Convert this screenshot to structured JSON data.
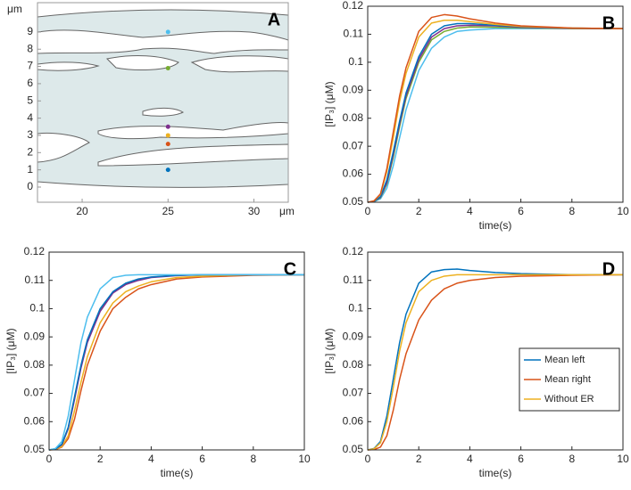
{
  "chart_data": [
    {
      "type": "scatter",
      "panel_label": "A",
      "xlabel": "μm",
      "ylabel": "μm",
      "xlim": [
        17.4,
        32.0
      ],
      "ylim": [
        -0.88,
        10.7
      ],
      "xticks": [
        20,
        25,
        30
      ],
      "yticks": [
        0,
        1,
        2,
        3,
        4,
        5,
        6,
        7,
        8,
        9
      ],
      "x": [
        25,
        25,
        25,
        25,
        25,
        25
      ],
      "values": [
        9,
        6.9,
        3.5,
        3.0,
        2.5,
        1.0
      ],
      "colors": [
        "#4dbeee",
        "#77ac30",
        "#7e2f8e",
        "#edb120",
        "#d95319",
        "#0072bd"
      ]
    },
    {
      "type": "line",
      "panel_label": "B",
      "xlabel": "time(s)",
      "ylabel": "[IP₃] (μM)",
      "xlim": [
        0,
        10
      ],
      "ylim": [
        0.05,
        0.12
      ],
      "xticks": [
        0,
        2,
        4,
        6,
        8,
        10
      ],
      "yticks": [
        0.05,
        0.06,
        0.07,
        0.08,
        0.09,
        0.1,
        0.11,
        0.12
      ],
      "x": [
        0,
        0.25,
        0.5,
        0.75,
        1,
        1.25,
        1.5,
        2,
        2.5,
        3,
        3.5,
        4,
        5,
        6,
        8,
        10
      ],
      "series": [
        {
          "color": "#4dbeee",
          "values": [
            0.05,
            0.0502,
            0.0512,
            0.055,
            0.063,
            0.073,
            0.083,
            0.097,
            0.105,
            0.109,
            0.111,
            0.1115,
            0.112,
            0.112,
            0.112,
            0.112
          ]
        },
        {
          "color": "#77ac30",
          "values": [
            0.05,
            0.0503,
            0.0516,
            0.0565,
            0.066,
            0.077,
            0.087,
            0.1,
            0.108,
            0.111,
            0.1122,
            0.1126,
            0.1125,
            0.1123,
            0.112,
            0.112
          ]
        },
        {
          "color": "#7e2f8e",
          "values": [
            0.05,
            0.0503,
            0.0518,
            0.057,
            0.067,
            0.078,
            0.088,
            0.101,
            0.109,
            0.112,
            0.113,
            0.1132,
            0.113,
            0.1125,
            0.1121,
            0.112
          ]
        },
        {
          "color": "#0072bd",
          "values": [
            0.05,
            0.0503,
            0.052,
            0.058,
            0.068,
            0.079,
            0.089,
            0.102,
            0.11,
            0.113,
            0.1138,
            0.1138,
            0.1132,
            0.1127,
            0.1122,
            0.112
          ]
        },
        {
          "color": "#edb120",
          "values": [
            0.05,
            0.0505,
            0.0528,
            0.061,
            0.073,
            0.086,
            0.096,
            0.109,
            0.114,
            0.115,
            0.115,
            0.1145,
            0.1135,
            0.1128,
            0.1122,
            0.112
          ]
        },
        {
          "color": "#d95319",
          "values": [
            0.05,
            0.0505,
            0.053,
            0.062,
            0.075,
            0.088,
            0.098,
            0.111,
            0.116,
            0.117,
            0.1165,
            0.1155,
            0.114,
            0.113,
            0.1122,
            0.112
          ]
        }
      ]
    },
    {
      "type": "line",
      "panel_label": "C",
      "xlabel": "time(s)",
      "ylabel": "[IP₃] (μM)",
      "xlim": [
        0,
        10
      ],
      "ylim": [
        0.05,
        0.12
      ],
      "xticks": [
        0,
        2,
        4,
        6,
        8,
        10
      ],
      "yticks": [
        0.05,
        0.06,
        0.07,
        0.08,
        0.09,
        0.1,
        0.11,
        0.12
      ],
      "x": [
        0,
        0.25,
        0.5,
        0.75,
        1,
        1.25,
        1.5,
        2,
        2.5,
        3,
        3.5,
        4,
        5,
        6,
        8,
        10
      ],
      "series": [
        {
          "color": "#d95319",
          "values": [
            0.05,
            0.0501,
            0.051,
            0.054,
            0.061,
            0.071,
            0.08,
            0.092,
            0.1,
            0.104,
            0.107,
            0.1085,
            0.1105,
            0.1112,
            0.1118,
            0.112
          ]
        },
        {
          "color": "#edb120",
          "values": [
            0.05,
            0.0502,
            0.0512,
            0.055,
            0.064,
            0.074,
            0.083,
            0.095,
            0.102,
            0.106,
            0.108,
            0.1095,
            0.111,
            0.1115,
            0.112,
            0.112
          ]
        },
        {
          "color": "#77ac30",
          "values": [
            0.05,
            0.0503,
            0.0519,
            0.0578,
            0.0685,
            0.0795,
            0.0885,
            0.0995,
            0.1058,
            0.1088,
            0.1103,
            0.1111,
            0.1118,
            0.112,
            0.112,
            0.112
          ]
        },
        {
          "color": "#7e2f8e",
          "values": [
            0.05,
            0.0503,
            0.0518,
            0.0575,
            0.068,
            0.079,
            0.088,
            0.099,
            0.1055,
            0.1085,
            0.11,
            0.111,
            0.1117,
            0.112,
            0.112,
            0.112
          ]
        },
        {
          "color": "#0072bd",
          "values": [
            0.05,
            0.0503,
            0.052,
            0.058,
            0.069,
            0.08,
            0.089,
            0.1,
            0.106,
            0.109,
            0.1105,
            0.1112,
            0.1118,
            0.112,
            0.112,
            0.112
          ]
        },
        {
          "color": "#4dbeee",
          "values": [
            0.05,
            0.0505,
            0.053,
            0.062,
            0.075,
            0.088,
            0.097,
            0.107,
            0.111,
            0.1118,
            0.112,
            0.112,
            0.112,
            0.112,
            0.112,
            0.112
          ]
        }
      ]
    },
    {
      "type": "line",
      "panel_label": "D",
      "xlabel": "time(s)",
      "ylabel": "[IP₃] (μM)",
      "xlim": [
        0,
        10
      ],
      "ylim": [
        0.05,
        0.12
      ],
      "xticks": [
        0,
        2,
        4,
        6,
        8,
        10
      ],
      "yticks": [
        0.05,
        0.06,
        0.07,
        0.08,
        0.09,
        0.1,
        0.11,
        0.12
      ],
      "legend": "lower right",
      "x": [
        0,
        0.25,
        0.5,
        0.75,
        1,
        1.25,
        1.5,
        2,
        2.5,
        3,
        3.5,
        4,
        5,
        6,
        8,
        10
      ],
      "series": [
        {
          "name": "Mean left",
          "color": "#0072bd",
          "values": [
            0.05,
            0.0505,
            0.053,
            0.062,
            0.075,
            0.088,
            0.098,
            0.109,
            0.113,
            0.1138,
            0.114,
            0.1135,
            0.1128,
            0.1124,
            0.112,
            0.112
          ]
        },
        {
          "name": "Mean right",
          "color": "#d95319",
          "values": [
            0.05,
            0.0501,
            0.051,
            0.055,
            0.064,
            0.075,
            0.084,
            0.096,
            0.103,
            0.107,
            0.109,
            0.11,
            0.111,
            0.1115,
            0.1118,
            0.112
          ]
        },
        {
          "name": "Without ER",
          "color": "#edb120",
          "values": [
            0.05,
            0.0504,
            0.0525,
            0.06,
            0.072,
            0.085,
            0.095,
            0.106,
            0.11,
            0.1115,
            0.112,
            0.112,
            0.112,
            0.112,
            0.112,
            0.112
          ]
        }
      ]
    }
  ]
}
